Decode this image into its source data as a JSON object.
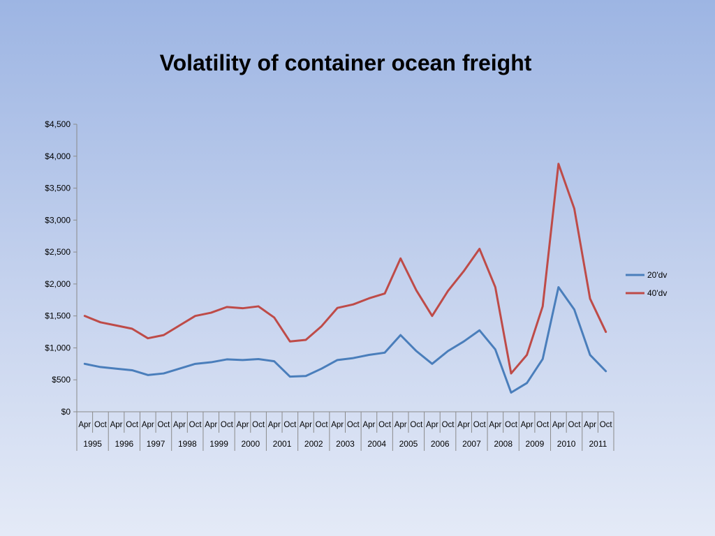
{
  "chart_data": {
    "type": "line",
    "title": "Volatility of container ocean freight",
    "xlabel": "",
    "ylabel": "",
    "ylim": [
      0,
      4500
    ],
    "yticks": [
      0,
      500,
      1000,
      1500,
      2000,
      2500,
      3000,
      3500,
      4000,
      4500
    ],
    "ytick_labels": [
      "$0",
      "$500",
      "$1,000",
      "$1,500",
      "$2,000",
      "$2,500",
      "$3,000",
      "$3,500",
      "$4,000",
      "$4,500"
    ],
    "years": [
      "1995",
      "1996",
      "1997",
      "1998",
      "1999",
      "2000",
      "2001",
      "2002",
      "2003",
      "2004",
      "2005",
      "2006",
      "2007",
      "2008",
      "2009",
      "2010",
      "2011"
    ],
    "months": [
      "Apr",
      "Oct"
    ],
    "legend_position": "right",
    "grid": false,
    "series": [
      {
        "name": "20'dv",
        "color": "#4a7ebb",
        "values": [
          750,
          700,
          675,
          650,
          575,
          600,
          675,
          750,
          775,
          820,
          810,
          825,
          790,
          550,
          560,
          675,
          810,
          840,
          890,
          925,
          1200,
          950,
          750,
          950,
          1100,
          1275,
          975,
          300,
          450,
          825,
          1950,
          1600,
          890,
          635
        ]
      },
      {
        "name": "40'dv",
        "color": "#be4b48",
        "values": [
          1500,
          1400,
          1350,
          1300,
          1150,
          1200,
          1350,
          1500,
          1550,
          1640,
          1620,
          1650,
          1475,
          1100,
          1125,
          1340,
          1625,
          1680,
          1775,
          1850,
          2400,
          1900,
          1500,
          1890,
          2200,
          2550,
          1950,
          600,
          890,
          1650,
          3880,
          3180,
          1770,
          1250
        ]
      }
    ]
  }
}
